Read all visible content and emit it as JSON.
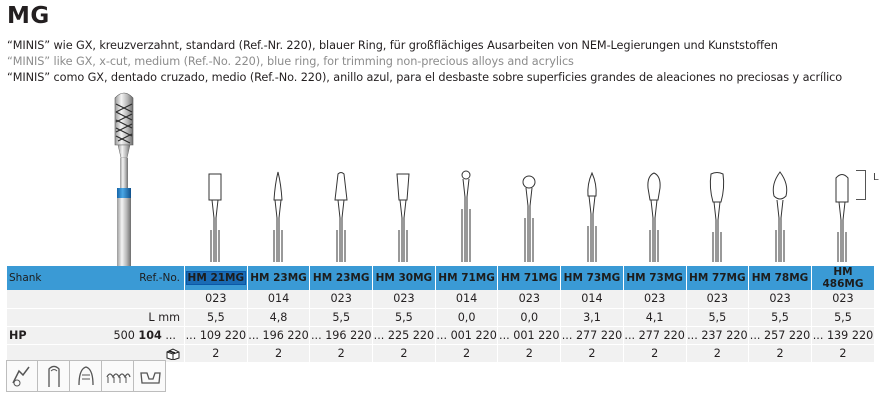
{
  "header": {
    "title": "MG",
    "desc_de": "“MINIS” wie GX, kreuzverzahnt, standard (Ref.-Nr. 220), blauer Ring, für großflächiges Ausarbeiten von NEM-Legierungen und Kunststoffen",
    "desc_en": "“MINIS” like GX, x-cut, medium (Ref.-No. 220), blue ring, for trimming non-precious alloys and acrylics",
    "desc_es": "“MINIS” como GX, dentado cruzado, medio (Ref.-No. 220), anillo azul, para el desbaste sobre superficies grandes de aleaciones no preciosas y acrílico"
  },
  "length_marker": "L",
  "colors": {
    "ring_blue": "#1e88d0",
    "header_blue": "#3a9ad5",
    "row_grey": "#f1f1f1"
  },
  "table": {
    "shank_label": "Shank",
    "ref_label": "Ref.-No.",
    "size_label": "",
    "length_label": "L mm",
    "hp_label": "HP",
    "hp_prefix": "500 ",
    "hp_bold": "104",
    "hp_suffix": " ...",
    "pack_icon": "package-icon",
    "columns": [
      {
        "ref": "HM 21MG",
        "size": "023",
        "length": "5,5",
        "hp": "... 109 220",
        "pack": "2",
        "selected": true
      },
      {
        "ref": "HM 23MG",
        "size": "014",
        "length": "4,8",
        "hp": "... 196 220",
        "pack": "2"
      },
      {
        "ref": "HM 23MG",
        "size": "023",
        "length": "5,5",
        "hp": "... 196 220",
        "pack": "2"
      },
      {
        "ref": "HM 30MG",
        "size": "023",
        "length": "5,5",
        "hp": "... 225 220",
        "pack": "2"
      },
      {
        "ref": "HM 71MG",
        "size": "014",
        "length": "0,0",
        "hp": "... 001 220",
        "pack": "2"
      },
      {
        "ref": "HM 71MG",
        "size": "023",
        "length": "0,0",
        "hp": "... 001 220",
        "pack": "2"
      },
      {
        "ref": "HM 73MG",
        "size": "014",
        "length": "3,1",
        "hp": "... 277 220",
        "pack": "2"
      },
      {
        "ref": "HM 73MG",
        "size": "023",
        "length": "4,1",
        "hp": "... 277 220",
        "pack": "2"
      },
      {
        "ref": "HM 77MG",
        "size": "023",
        "length": "5,5",
        "hp": "... 237 220",
        "pack": "2"
      },
      {
        "ref": "HM 78MG",
        "size": "023",
        "length": "5,5",
        "hp": "... 257 220",
        "pack": "2"
      },
      {
        "ref": "HM 486MG",
        "size": "023",
        "length": "5,5",
        "hp": "... 139 220",
        "pack": "2"
      }
    ]
  },
  "bur_shapes": [
    "cylinder",
    "taper-needle",
    "taper-round",
    "inverted-cone",
    "small-ball",
    "ball",
    "flame-small",
    "pear",
    "pear-large",
    "flame",
    "cylinder-round"
  ],
  "application_icons": [
    "crown-crimper-icon",
    "finger-nail-icon",
    "denture-icon",
    "bridge-icon",
    "partial-denture-icon"
  ]
}
